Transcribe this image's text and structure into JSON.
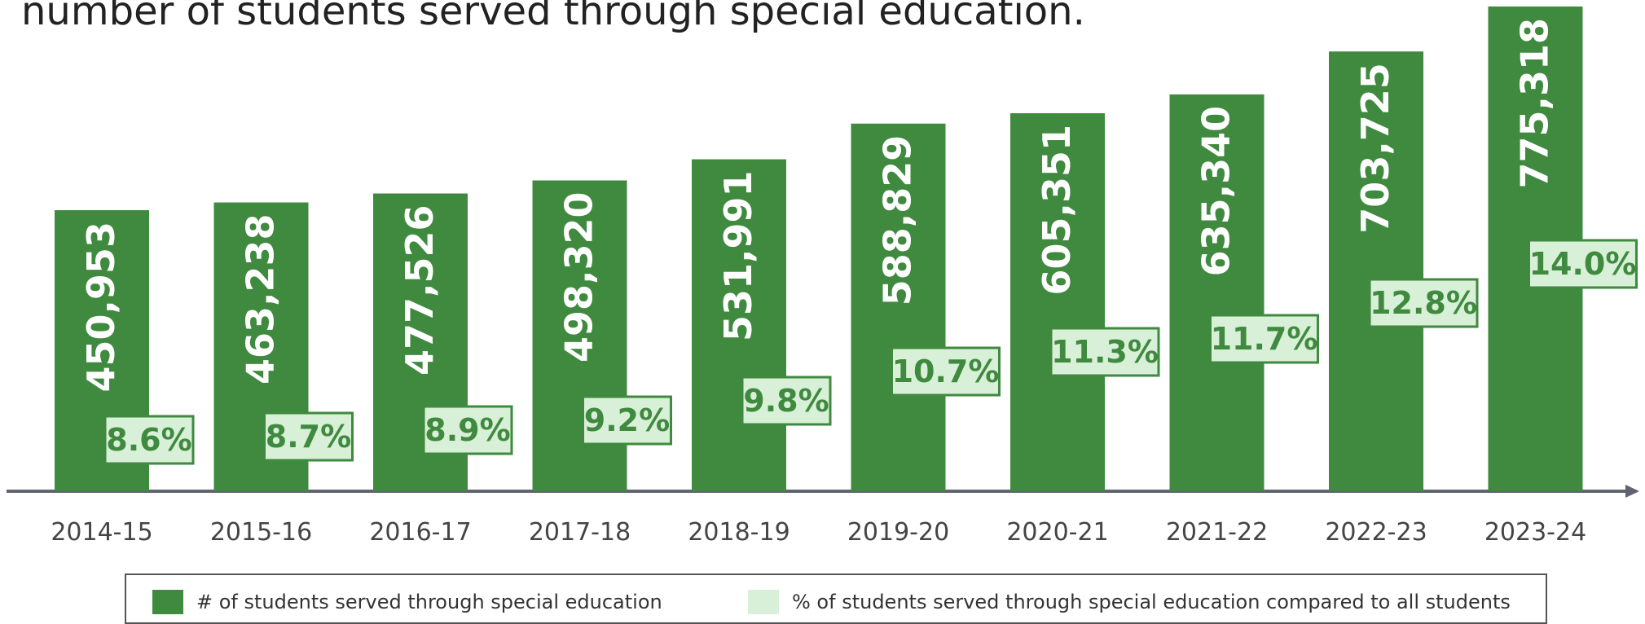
{
  "title": "number of students served through special education.",
  "colors": {
    "bar": "#3f8a3f",
    "label_bg": "#d8efd8",
    "label_text": "#3f8a3f",
    "axis": "#5f6470"
  },
  "chart_data": {
    "type": "bar",
    "categories": [
      "2014-15",
      "2015-16",
      "2016-17",
      "2017-18",
      "2018-19",
      "2019-20",
      "2020-21",
      "2021-22",
      "2022-23",
      "2023-24"
    ],
    "series": [
      {
        "name": "# of students served through special education",
        "values": [
          450953,
          463238,
          477526,
          498320,
          531991,
          588829,
          605351,
          635340,
          703725,
          775318
        ],
        "labels": [
          "450,953",
          "463,238",
          "477,526",
          "498,320",
          "531,991",
          "588,829",
          "605,351",
          "635,340",
          "703,725",
          "775,318"
        ]
      },
      {
        "name": "% of students served through special education compared to all students",
        "values": [
          8.6,
          8.7,
          8.9,
          9.2,
          9.8,
          10.7,
          11.3,
          11.7,
          12.8,
          14.0
        ],
        "labels": [
          "8.6%",
          "8.7%",
          "8.9%",
          "9.2%",
          "9.8%",
          "10.7%",
          "11.3%",
          "11.7%",
          "12.8%",
          "14.0%"
        ]
      }
    ],
    "legend": "bottom",
    "grid": false
  }
}
